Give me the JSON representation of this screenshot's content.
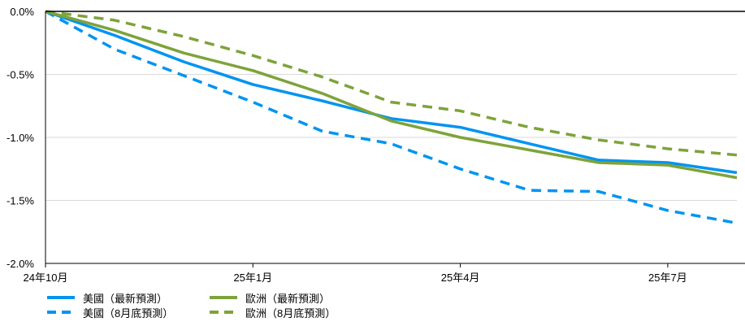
{
  "chart_data": {
    "type": "line",
    "x": [
      "24年10月",
      "24年11月",
      "24年12月",
      "25年1月",
      "25年2月",
      "25年3月",
      "25年4月",
      "25年5月",
      "25年6月",
      "25年7月",
      "25年8月"
    ],
    "x_tick_labels": [
      "24年10月",
      "25年1月",
      "25年4月",
      "25年7月"
    ],
    "y_tick_labels": [
      "0.0%",
      "-0.5%",
      "-1.0%",
      "-1.5%",
      "-2.0%"
    ],
    "ylim": [
      -2.0,
      0.0
    ],
    "grid": true,
    "legend_position": "bottom",
    "series": [
      {
        "name": "美國（最新預測）",
        "color": "#0094f0",
        "style": "solid",
        "values": [
          0.0,
          -0.19,
          -0.4,
          -0.58,
          -0.71,
          -0.85,
          -0.92,
          -1.05,
          -1.18,
          -1.2,
          -1.28
        ]
      },
      {
        "name": "美國（8月底預測）",
        "color": "#0094f0",
        "style": "dashed",
        "values": [
          0.0,
          -0.3,
          -0.51,
          -0.72,
          -0.95,
          -1.05,
          -1.25,
          -1.42,
          -1.43,
          -1.58,
          -1.68
        ]
      },
      {
        "name": "歐洲（最新預測）",
        "color": "#7ea33a",
        "style": "solid",
        "values": [
          0.0,
          -0.15,
          -0.33,
          -0.47,
          -0.65,
          -0.87,
          -1.0,
          -1.1,
          -1.2,
          -1.22,
          -1.32
        ]
      },
      {
        "name": "歐洲（8月底預測）",
        "color": "#7ea33a",
        "style": "dashed",
        "values": [
          0.0,
          -0.07,
          -0.2,
          -0.35,
          -0.52,
          -0.72,
          -0.79,
          -0.92,
          -1.02,
          -1.09,
          -1.14
        ]
      }
    ]
  }
}
